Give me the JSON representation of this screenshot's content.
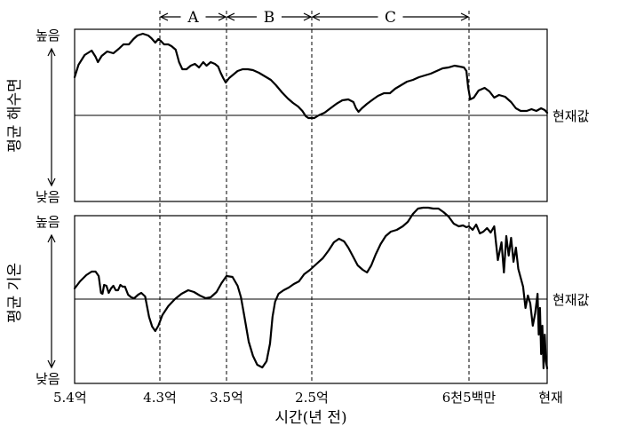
{
  "chart_data": {
    "type": "line",
    "xlabel": "시간(년 전)",
    "x_ticks": [
      {
        "label": "5.4억",
        "value": 540
      },
      {
        "label": "4.3억",
        "value": 430
      },
      {
        "label": "3.5억",
        "value": 350
      },
      {
        "label": "2.5억",
        "value": 250
      },
      {
        "label": "6천5백만",
        "value": 65
      },
      {
        "label": "현재",
        "value": 0
      }
    ],
    "x_range": [
      540,
      0
    ],
    "periods": [
      {
        "label": "A",
        "from": 430,
        "to": 350
      },
      {
        "label": "B",
        "from": 350,
        "to": 250
      },
      {
        "label": "C",
        "from": 250,
        "to": 65
      }
    ],
    "panels": [
      {
        "ylabel": "평균 해수면",
        "y_high_label": "높음",
        "y_low_label": "낮음",
        "reference_label": "현재값",
        "reference_level": 0,
        "y_range": [
          -100,
          100
        ],
        "series": [
          [
            540,
            43
          ],
          [
            535,
            57
          ],
          [
            527,
            68
          ],
          [
            518,
            73
          ],
          [
            513,
            66
          ],
          [
            510,
            60
          ],
          [
            505,
            67
          ],
          [
            498,
            72
          ],
          [
            490,
            70
          ],
          [
            483,
            75
          ],
          [
            477,
            80
          ],
          [
            470,
            80
          ],
          [
            464,
            86
          ],
          [
            459,
            90
          ],
          [
            452,
            92
          ],
          [
            445,
            90
          ],
          [
            441,
            87
          ],
          [
            436,
            82
          ],
          [
            432,
            86
          ],
          [
            429,
            84
          ],
          [
            425,
            80
          ],
          [
            420,
            80
          ],
          [
            416,
            78
          ],
          [
            411,
            74
          ],
          [
            407,
            60
          ],
          [
            403,
            52
          ],
          [
            398,
            52
          ],
          [
            393,
            56
          ],
          [
            388,
            58
          ],
          [
            383,
            54
          ],
          [
            378,
            60
          ],
          [
            374,
            56
          ],
          [
            369,
            60
          ],
          [
            364,
            58
          ],
          [
            360,
            55
          ],
          [
            357,
            48
          ],
          [
            354,
            42
          ],
          [
            351,
            37
          ],
          [
            347,
            42
          ],
          [
            342,
            46
          ],
          [
            337,
            50
          ],
          [
            331,
            52
          ],
          [
            325,
            52
          ],
          [
            319,
            51
          ],
          [
            312,
            48
          ],
          [
            305,
            44
          ],
          [
            298,
            40
          ],
          [
            292,
            34
          ],
          [
            285,
            26
          ],
          [
            278,
            19
          ],
          [
            272,
            14
          ],
          [
            266,
            10
          ],
          [
            261,
            5
          ],
          [
            257,
            -1
          ],
          [
            254,
            -3
          ],
          [
            251,
            -3
          ],
          [
            247,
            -3
          ],
          [
            242,
            0
          ],
          [
            235,
            3
          ],
          [
            228,
            8
          ],
          [
            221,
            13
          ],
          [
            214,
            17
          ],
          [
            207,
            18
          ],
          [
            201,
            15
          ],
          [
            198,
            8
          ],
          [
            195,
            4
          ],
          [
            191,
            8
          ],
          [
            185,
            13
          ],
          [
            178,
            18
          ],
          [
            172,
            22
          ],
          [
            165,
            25
          ],
          [
            158,
            25
          ],
          [
            152,
            30
          ],
          [
            145,
            34
          ],
          [
            138,
            38
          ],
          [
            131,
            40
          ],
          [
            124,
            43
          ],
          [
            117,
            45
          ],
          [
            110,
            47
          ],
          [
            103,
            50
          ],
          [
            96,
            53
          ],
          [
            89,
            54
          ],
          [
            82,
            56
          ],
          [
            76,
            55
          ],
          [
            71,
            54
          ],
          [
            68,
            50
          ],
          [
            66,
            32
          ],
          [
            64,
            18
          ],
          [
            61,
            20
          ],
          [
            57,
            28
          ],
          [
            52,
            31
          ],
          [
            48,
            27
          ],
          [
            44,
            20
          ],
          [
            40,
            23
          ],
          [
            35,
            21
          ],
          [
            30,
            15
          ],
          [
            26,
            8
          ],
          [
            22,
            5
          ],
          [
            17,
            5
          ],
          [
            13,
            7
          ],
          [
            9,
            5
          ],
          [
            5,
            8
          ],
          [
            2,
            6
          ],
          [
            0,
            3
          ]
        ]
      },
      {
        "ylabel": "평균 기온",
        "y_high_label": "높음",
        "y_low_label": "낮음",
        "reference_label": "현재값",
        "reference_level": 0,
        "y_range": [
          -100,
          100
        ],
        "series": [
          [
            540,
            12
          ],
          [
            533,
            20
          ],
          [
            525,
            27
          ],
          [
            518,
            31
          ],
          [
            513,
            31
          ],
          [
            509,
            26
          ],
          [
            506,
            7
          ],
          [
            504,
            6
          ],
          [
            502,
            16
          ],
          [
            499,
            15
          ],
          [
            496,
            7
          ],
          [
            493,
            12
          ],
          [
            490,
            15
          ],
          [
            487,
            10
          ],
          [
            484,
            10
          ],
          [
            481,
            16
          ],
          [
            478,
            14
          ],
          [
            475,
            14
          ],
          [
            471,
            5
          ],
          [
            467,
            2
          ],
          [
            463,
            1
          ],
          [
            458,
            5
          ],
          [
            454,
            7
          ],
          [
            449,
            3
          ],
          [
            444,
            -20
          ],
          [
            440,
            -31
          ],
          [
            436,
            -36
          ],
          [
            432,
            -30
          ],
          [
            427,
            -18
          ],
          [
            420,
            -8
          ],
          [
            412,
            0
          ],
          [
            404,
            6
          ],
          [
            396,
            10
          ],
          [
            389,
            8
          ],
          [
            382,
            4
          ],
          [
            375,
            1
          ],
          [
            369,
            2
          ],
          [
            362,
            8
          ],
          [
            356,
            18
          ],
          [
            350,
            26
          ],
          [
            343,
            25
          ],
          [
            337,
            15
          ],
          [
            333,
            2
          ],
          [
            329,
            -20
          ],
          [
            324,
            -48
          ],
          [
            319,
            -64
          ],
          [
            314,
            -74
          ],
          [
            308,
            -77
          ],
          [
            303,
            -70
          ],
          [
            299,
            -50
          ],
          [
            296,
            -20
          ],
          [
            293,
            -3
          ],
          [
            289,
            6
          ],
          [
            283,
            10
          ],
          [
            277,
            13
          ],
          [
            271,
            17
          ],
          [
            265,
            20
          ],
          [
            259,
            28
          ],
          [
            252,
            33
          ],
          [
            244,
            40
          ],
          [
            237,
            46
          ],
          [
            230,
            55
          ],
          [
            224,
            64
          ],
          [
            218,
            68
          ],
          [
            212,
            65
          ],
          [
            207,
            58
          ],
          [
            202,
            49
          ],
          [
            196,
            38
          ],
          [
            190,
            33
          ],
          [
            185,
            30
          ],
          [
            180,
            38
          ],
          [
            175,
            50
          ],
          [
            169,
            62
          ],
          [
            163,
            71
          ],
          [
            157,
            76
          ],
          [
            150,
            78
          ],
          [
            143,
            82
          ],
          [
            137,
            87
          ],
          [
            131,
            96
          ],
          [
            125,
            102
          ],
          [
            119,
            103
          ],
          [
            113,
            103
          ],
          [
            107,
            102
          ],
          [
            101,
            102
          ],
          [
            95,
            98
          ],
          [
            89,
            93
          ],
          [
            83,
            85
          ],
          [
            77,
            82
          ],
          [
            72,
            83
          ],
          [
            68,
            81
          ],
          [
            65,
            82
          ],
          [
            62,
            78
          ],
          [
            59,
            84
          ],
          [
            56,
            74
          ],
          [
            53,
            76
          ],
          [
            50,
            80
          ],
          [
            47,
            75
          ],
          [
            44,
            82
          ],
          [
            41,
            44
          ],
          [
            38,
            64
          ],
          [
            36,
            30
          ],
          [
            34,
            71
          ],
          [
            32,
            49
          ],
          [
            30,
            69
          ],
          [
            28,
            42
          ],
          [
            26,
            58
          ],
          [
            24,
            34
          ],
          [
            22,
            24
          ],
          [
            20,
            14
          ],
          [
            18,
            -10
          ],
          [
            16,
            4
          ],
          [
            14,
            -5
          ],
          [
            12,
            -30
          ],
          [
            10,
            -16
          ],
          [
            8,
            6
          ],
          [
            7,
            -40
          ],
          [
            6,
            -10
          ],
          [
            5,
            -62
          ],
          [
            4,
            -30
          ],
          [
            3,
            -78
          ],
          [
            2,
            -40
          ],
          [
            1,
            -70
          ],
          [
            0,
            -78
          ]
        ]
      }
    ]
  }
}
